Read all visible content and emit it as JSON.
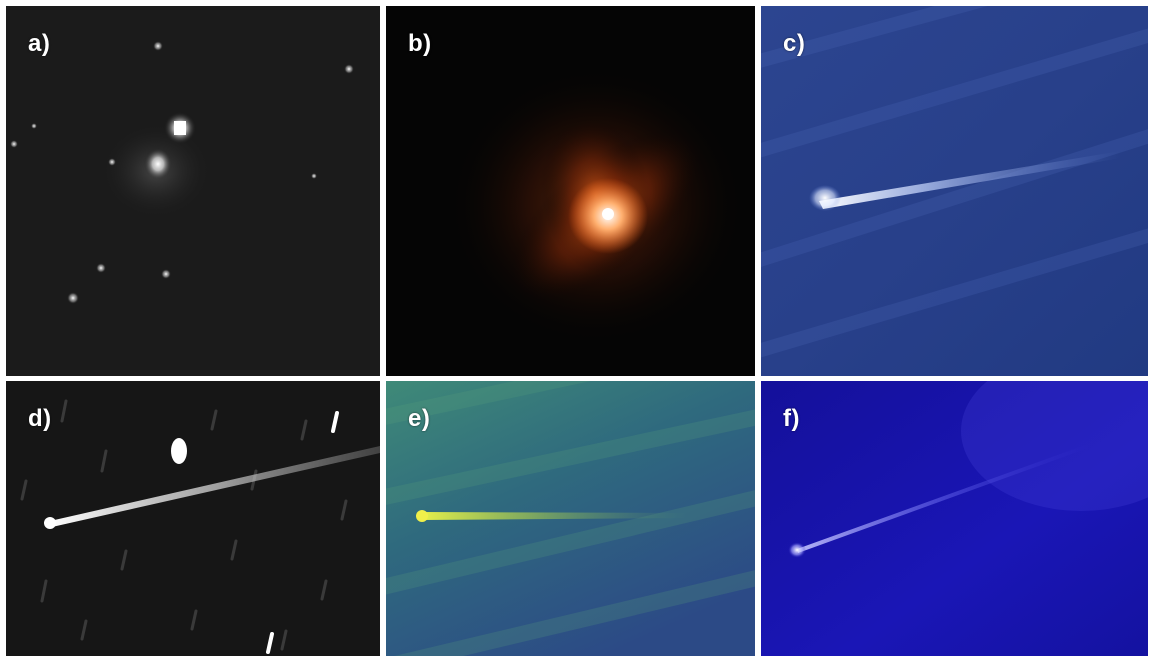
{
  "panels": {
    "a": {
      "label": "a)"
    },
    "b": {
      "label": "b)"
    },
    "c": {
      "label": "c)"
    },
    "d": {
      "label": "d)"
    },
    "e": {
      "label": "e)"
    },
    "f": {
      "label": "f)"
    }
  }
}
